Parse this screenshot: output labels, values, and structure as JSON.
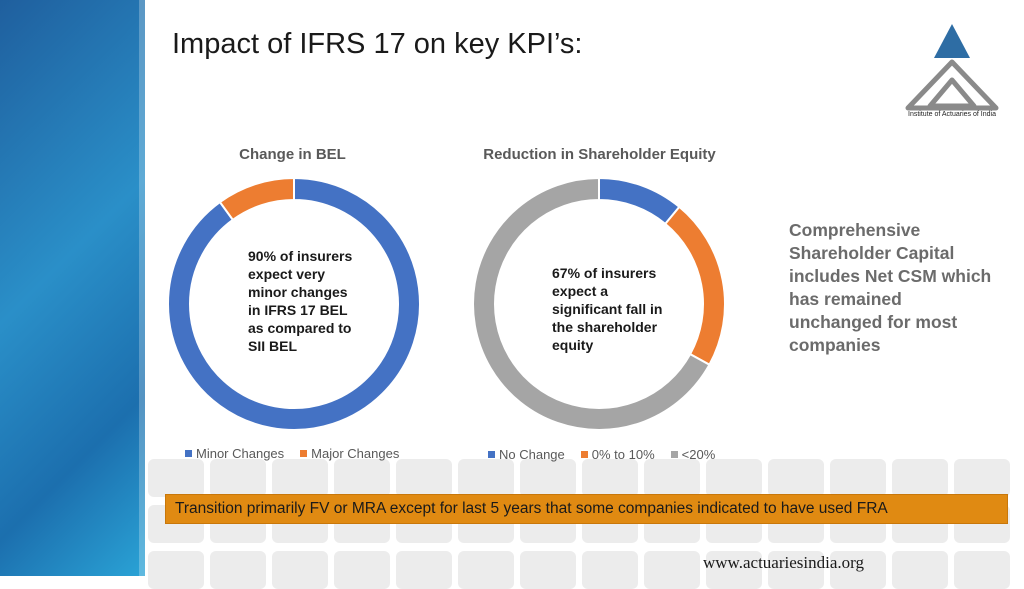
{
  "slide": {
    "title": "Impact of IFRS 17 on key KPI’s:",
    "logo_caption": "Institute of Actuaries of India",
    "side_note": "Comprehensive Shareholder Capital includes Net CSM which has remained unchanged for most companies",
    "banner": "Transition primarily FV or MRA except for last 5 years that some companies indicated to have used FRA",
    "footer_url": "www.actuariesindia.org"
  },
  "colors": {
    "blue": "#4472c4",
    "orange": "#ed7d31",
    "gray": "#a5a5a5",
    "banner": "#e08a12"
  },
  "chart_data": [
    {
      "type": "pie",
      "subtype": "donut",
      "title": "Change in BEL",
      "categories": [
        "Minor Changes",
        "Major Changes"
      ],
      "values": [
        90,
        10
      ],
      "annotation": "90% of insurers expect very minor changes in IFRS 17 BEL as compared to SII BEL",
      "legend": "bottom"
    },
    {
      "type": "pie",
      "subtype": "donut",
      "title": "Reduction in Shareholder Equity",
      "categories": [
        "No Change",
        "0% to 10%",
        "<20%"
      ],
      "values": [
        11,
        22,
        67
      ],
      "annotation": "67% of insurers expect a significant fall in the shareholder equity",
      "legend": "bottom"
    }
  ]
}
